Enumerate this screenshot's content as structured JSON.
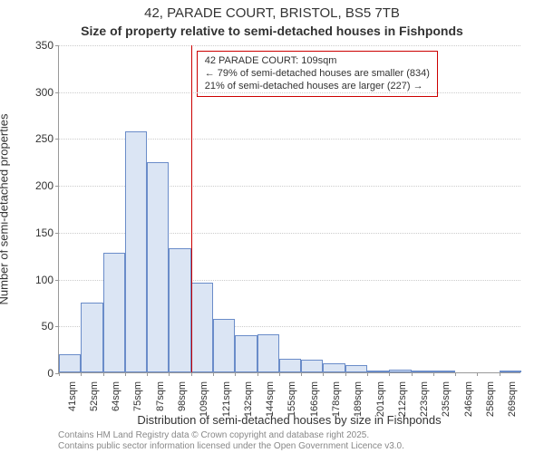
{
  "title_main": "42, PARADE COURT, BRISTOL, BS5 7TB",
  "title_sub": "Size of property relative to semi-detached houses in Fishponds",
  "y_axis_label": "Number of semi-detached properties",
  "x_axis_label": "Distribution of semi-detached houses by size in Fishponds",
  "footer_line1": "Contains HM Land Registry data © Crown copyright and database right 2025.",
  "footer_line2": "Contains public sector information licensed under the Open Government Licence v3.0.",
  "chart": {
    "type": "histogram",
    "ylim": [
      0,
      350
    ],
    "ytick_step": 50,
    "bar_fill": "#dbe5f4",
    "bar_stroke": "#6a8cc9",
    "grid_color": "#cccccc",
    "axis_color": "#999999",
    "background_color": "#ffffff",
    "xtick_unit": "sqm",
    "bins": [
      {
        "label": "41sqm",
        "value": 19
      },
      {
        "label": "52sqm",
        "value": 74
      },
      {
        "label": "64sqm",
        "value": 128
      },
      {
        "label": "75sqm",
        "value": 257
      },
      {
        "label": "87sqm",
        "value": 224
      },
      {
        "label": "98sqm",
        "value": 132
      },
      {
        "label": "109sqm",
        "value": 96
      },
      {
        "label": "121sqm",
        "value": 57
      },
      {
        "label": "132sqm",
        "value": 40
      },
      {
        "label": "144sqm",
        "value": 41
      },
      {
        "label": "155sqm",
        "value": 15
      },
      {
        "label": "166sqm",
        "value": 14
      },
      {
        "label": "178sqm",
        "value": 10
      },
      {
        "label": "189sqm",
        "value": 8
      },
      {
        "label": "201sqm",
        "value": 2
      },
      {
        "label": "212sqm",
        "value": 3
      },
      {
        "label": "223sqm",
        "value": 2
      },
      {
        "label": "235sqm",
        "value": 2
      },
      {
        "label": "246sqm",
        "value": 0
      },
      {
        "label": "258sqm",
        "value": 0
      },
      {
        "label": "269sqm",
        "value": 1
      }
    ],
    "marker": {
      "bin_index": 6,
      "color": "#cc0000",
      "label_title": "42 PARADE COURT: 109sqm",
      "label_smaller": "← 79% of semi-detached houses are smaller (834)",
      "label_larger": "21% of semi-detached houses are larger (227) →"
    }
  }
}
